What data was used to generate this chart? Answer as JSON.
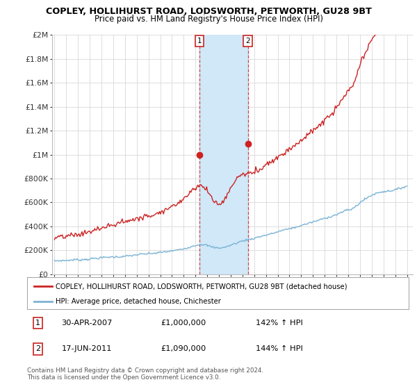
{
  "title": "COPLEY, HOLLIHURST ROAD, LODSWORTH, PETWORTH, GU28 9BT",
  "subtitle": "Price paid vs. HM Land Registry's House Price Index (HPI)",
  "ylabel_ticks": [
    "£0",
    "£200K",
    "£400K",
    "£600K",
    "£800K",
    "£1M",
    "£1.2M",
    "£1.4M",
    "£1.6M",
    "£1.8M",
    "£2M"
  ],
  "ytick_values": [
    0,
    200000,
    400000,
    600000,
    800000,
    1000000,
    1200000,
    1400000,
    1600000,
    1800000,
    2000000
  ],
  "ylim": [
    0,
    2000000
  ],
  "xlim_start": 1994.8,
  "xlim_end": 2025.5,
  "hpi_color": "#7ab3d4",
  "price_color": "#cc2222",
  "transaction1_date": 2007.33,
  "transaction1_price": 1000000,
  "transaction2_date": 2011.46,
  "transaction2_price": 1090000,
  "legend_label1": "COPLEY, HOLLIHURST ROAD, LODSWORTH, PETWORTH, GU28 9BT (detached house)",
  "legend_label2": "HPI: Average price, detached house, Chichester",
  "annotation1_label": "1",
  "annotation1_date": "30-APR-2007",
  "annotation1_price": "£1,000,000",
  "annotation1_hpi": "142% ↑ HPI",
  "annotation2_label": "2",
  "annotation2_date": "17-JUN-2011",
  "annotation2_price": "£1,090,000",
  "annotation2_hpi": "144% ↑ HPI",
  "footnote1": "Contains HM Land Registry data © Crown copyright and database right 2024.",
  "footnote2": "This data is licensed under the Open Government Licence v3.0.",
  "background_color": "#ffffff",
  "grid_color": "#d8d8d8",
  "span_color": "#d0e8f8",
  "marker_color": "#cc2222",
  "vline_color": "#cc2222"
}
